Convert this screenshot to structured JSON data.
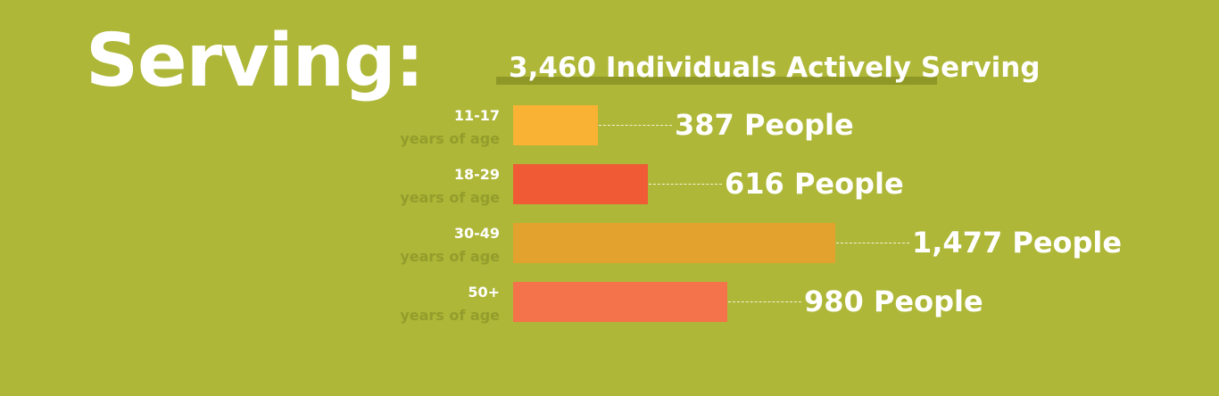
{
  "header": {
    "title": "Serving:"
  },
  "chart_data": {
    "type": "bar",
    "orientation": "horizontal",
    "title": "3,460 Individuals Actively Serving",
    "axis_unit": "years of age",
    "value_suffix": "People",
    "categories": [
      "11-17",
      "18-29",
      "30-49",
      "50+"
    ],
    "values": [
      387,
      616,
      1477,
      980
    ],
    "value_labels": [
      "387 People",
      "616 People",
      "1,477 People",
      "980 People"
    ],
    "colors": [
      "#f9b233",
      "#f05a35",
      "#e3a22d",
      "#f4734a"
    ],
    "xlim": [
      0,
      1477
    ],
    "grid": false,
    "legend": "none"
  }
}
